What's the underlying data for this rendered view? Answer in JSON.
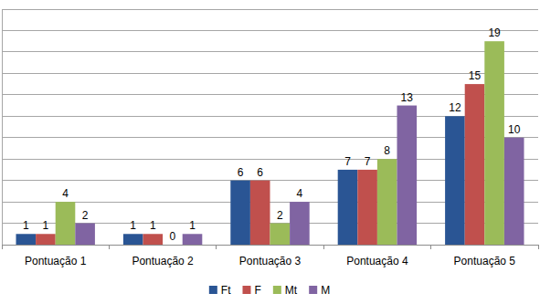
{
  "chart_data": {
    "type": "bar",
    "categories": [
      "Pontuação 1",
      "Pontuação 2",
      "Pontuação 3",
      "Pontuação 4",
      "Pontuação 5"
    ],
    "series": [
      {
        "name": "Ft",
        "color": "#2a5594",
        "values": [
          1,
          1,
          6,
          7,
          12
        ]
      },
      {
        "name": "F",
        "color": "#c0504d",
        "values": [
          1,
          1,
          6,
          7,
          15
        ]
      },
      {
        "name": "Mt",
        "color": "#9bbb59",
        "values": [
          4,
          0,
          2,
          8,
          19
        ]
      },
      {
        "name": "M",
        "color": "#8064a2",
        "values": [
          2,
          1,
          4,
          13,
          10
        ]
      }
    ],
    "ylim": [
      0,
      22
    ],
    "yticks": [
      0,
      2,
      4,
      6,
      8,
      10,
      12,
      14,
      16,
      18,
      20,
      22
    ],
    "grid": true,
    "data_labels": true,
    "tick_labels": "x",
    "legend": "bottom"
  }
}
